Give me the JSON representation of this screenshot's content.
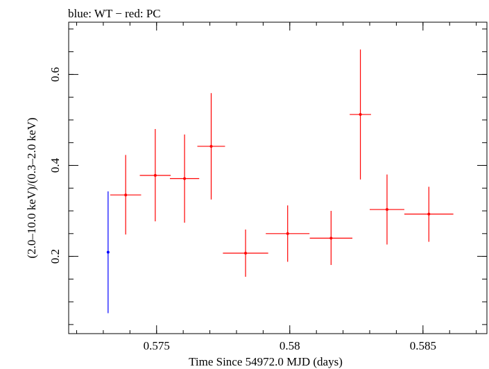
{
  "chart_data": {
    "type": "scatter",
    "title": "blue: WT − red: PC",
    "xlabel": "Time Since 54972.0 MJD (days)",
    "ylabel": "(2.0–10.0 keV)/(0.3–2.0 keV)",
    "xlim": [
      0.5717,
      0.5874
    ],
    "ylim": [
      0.03,
      0.715
    ],
    "x_ticks": [
      {
        "value": 0.575,
        "label": "0.575"
      },
      {
        "value": 0.58,
        "label": "0.58"
      },
      {
        "value": 0.585,
        "label": "0.585"
      }
    ],
    "y_ticks": [
      {
        "value": 0.2,
        "label": "0.2"
      },
      {
        "value": 0.4,
        "label": "0.4"
      },
      {
        "value": 0.6,
        "label": "0.6"
      }
    ],
    "grid": false,
    "series": [
      {
        "name": "WT",
        "color": "#0000ff",
        "points": [
          {
            "x": 0.57318,
            "y": 0.209,
            "xerr": 2e-05,
            "ylo": 0.075,
            "yhi": 0.343
          }
        ]
      },
      {
        "name": "PC",
        "color": "#ff0000",
        "points": [
          {
            "x": 0.57384,
            "y": 0.335,
            "xerr": 0.00058,
            "ylo": 0.248,
            "yhi": 0.423
          },
          {
            "x": 0.57495,
            "y": 0.378,
            "xerr": 0.00058,
            "ylo": 0.277,
            "yhi": 0.48
          },
          {
            "x": 0.57605,
            "y": 0.371,
            "xerr": 0.00055,
            "ylo": 0.274,
            "yhi": 0.468
          },
          {
            "x": 0.57705,
            "y": 0.442,
            "xerr": 0.00052,
            "ylo": 0.325,
            "yhi": 0.559
          },
          {
            "x": 0.57834,
            "y": 0.207,
            "xerr": 0.00085,
            "ylo": 0.155,
            "yhi": 0.259
          },
          {
            "x": 0.57992,
            "y": 0.25,
            "xerr": 0.00082,
            "ylo": 0.188,
            "yhi": 0.312
          },
          {
            "x": 0.58155,
            "y": 0.24,
            "xerr": 0.0008,
            "ylo": 0.181,
            "yhi": 0.3
          },
          {
            "x": 0.58265,
            "y": 0.512,
            "xerr": 0.0004,
            "ylo": 0.369,
            "yhi": 0.655
          },
          {
            "x": 0.58365,
            "y": 0.303,
            "xerr": 0.00065,
            "ylo": 0.226,
            "yhi": 0.38
          },
          {
            "x": 0.58522,
            "y": 0.293,
            "xerr": 0.00092,
            "ylo": 0.232,
            "yhi": 0.353
          }
        ]
      }
    ]
  }
}
